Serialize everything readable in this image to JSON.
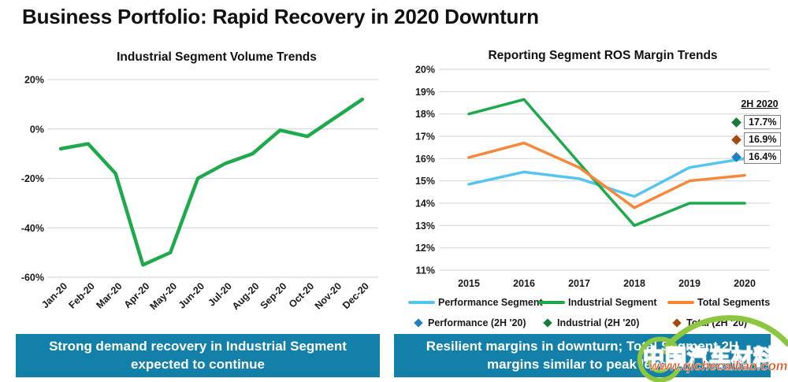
{
  "slide_title": "Business Portfolio: Rapid Recovery in 2020 Downturn",
  "colors": {
    "grid": "#D9D9D9",
    "callout_bg": "#1380AA",
    "callout_text": "#FFFFFF",
    "performance_line": "#55C4F1",
    "industrial_line": "#1FA94D",
    "total_line": "#F6883C",
    "performance_diamond": "#2081C2",
    "industrial_diamond": "#1A7A3C",
    "total_diamond": "#A34A0E",
    "watermark_green": "#8DC63F",
    "watermark_blue": "#2B3F9E",
    "watermark_orange": "#E8490C"
  },
  "chart_data": [
    {
      "id": "industrial-volume",
      "type": "line",
      "title": "Industrial Segment Volume Trends",
      "categories": [
        "Jan-20",
        "Feb-20",
        "Mar-20",
        "Apr-20",
        "May-20",
        "Jun-20",
        "Jul-20",
        "Aug-20",
        "Sep-20",
        "Oct-20",
        "Nov-20",
        "Dec-20"
      ],
      "series": [
        {
          "name": "Industrial Segment Volume",
          "color": "#1FA94D",
          "values": [
            -8,
            -6,
            -18,
            -55,
            -50,
            -20,
            -14,
            -10,
            -0.5,
            -3,
            4.5,
            12
          ]
        }
      ],
      "ylim": [
        -60,
        20
      ],
      "yticks": [
        {
          "value": 20,
          "label": "20%"
        },
        {
          "value": 0,
          "label": "0%"
        },
        {
          "value": -20,
          "label": "-20%"
        },
        {
          "value": -40,
          "label": "-40%"
        },
        {
          "value": -60,
          "label": "-60%"
        }
      ],
      "grid": true,
      "legend_position": "none"
    },
    {
      "id": "ros-margin",
      "type": "line",
      "title": "Reporting Segment ROS Margin Trends",
      "categories": [
        "2015",
        "2016",
        "2017",
        "2018",
        "2019",
        "2020"
      ],
      "series": [
        {
          "name": "Performance Segment",
          "color": "#55C4F1",
          "values": [
            14.85,
            15.4,
            15.1,
            14.3,
            15.6,
            16.0
          ]
        },
        {
          "name": "Industrial Segment",
          "color": "#1FA94D",
          "values": [
            18.0,
            18.65,
            15.8,
            13.0,
            14.0,
            14.0
          ]
        },
        {
          "name": "Total Segments",
          "color": "#F6883C",
          "values": [
            16.05,
            16.7,
            15.6,
            13.8,
            15.0,
            15.25
          ]
        }
      ],
      "ylim": [
        11,
        20
      ],
      "yticks": [
        {
          "value": 20,
          "label": "20%"
        },
        {
          "value": 19,
          "label": "19%"
        },
        {
          "value": 18,
          "label": "18%"
        },
        {
          "value": 17,
          "label": "17%"
        },
        {
          "value": 16,
          "label": "16%"
        },
        {
          "value": 15,
          "label": "15%"
        },
        {
          "value": 14,
          "label": "14%"
        },
        {
          "value": 13,
          "label": "13%"
        },
        {
          "value": 12,
          "label": "12%"
        },
        {
          "value": 11,
          "label": "11%"
        }
      ],
      "grid": true,
      "annotation": {
        "title": "2H 2020",
        "points": [
          {
            "series": "Industrial (2H '20)",
            "label": "17.7%",
            "value": 17.7,
            "color": "#1A7A3C"
          },
          {
            "series": "Total (2H '20)",
            "label": "16.9%",
            "value": 16.9,
            "color": "#A34A0E"
          },
          {
            "series": "Performance (2H '20)",
            "label": "16.4%",
            "value": 16.4,
            "color": "#2081C2"
          }
        ]
      },
      "legend_rows": [
        [
          {
            "marker": "line",
            "color": "#55C4F1",
            "label": "Performance Segment"
          },
          {
            "marker": "line",
            "color": "#1FA94D",
            "label": "Industrial Segment"
          },
          {
            "marker": "line",
            "color": "#F6883C",
            "label": "Total Segments"
          }
        ],
        [
          {
            "marker": "diamond",
            "color": "#2081C2",
            "label": "Performance (2H '20)"
          },
          {
            "marker": "diamond",
            "color": "#1A7A3C",
            "label": "Industrial (2H '20)"
          },
          {
            "marker": "diamond",
            "color": "#A34A0E",
            "label": "Total (2H '20)"
          }
        ]
      ]
    }
  ],
  "callouts": {
    "left": "Strong demand recovery in Industrial Segment expected to continue",
    "right": "Resilient margins in downturn; Total Segment 2H margins similar to peak levels"
  },
  "watermark": {
    "text": "中国汽车材料网",
    "url": "www.qichecailiao.com"
  }
}
